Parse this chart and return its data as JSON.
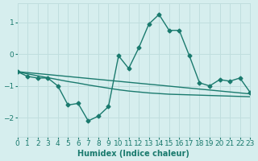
{
  "xlabel": "Humidex (Indice chaleur)",
  "ylabel": "",
  "xlim": [
    0,
    23
  ],
  "ylim": [
    -2.6,
    1.6
  ],
  "background_color": "#d6eeee",
  "grid_color": "#c0dede",
  "line_color": "#1a7a6e",
  "line1_x": [
    0,
    1,
    2,
    3,
    4,
    5,
    6,
    7,
    8,
    9,
    10,
    11,
    12,
    13,
    14,
    15,
    16,
    17,
    18,
    19,
    20,
    21,
    22,
    23
  ],
  "line1_y": [
    -0.55,
    -0.7,
    -0.75,
    -0.75,
    -1.0,
    -1.6,
    -1.55,
    -2.1,
    -1.95,
    -1.65,
    -0.05,
    -0.45,
    0.2,
    0.95,
    1.25,
    0.75,
    0.75,
    -0.05,
    -0.9,
    -1.0,
    -0.8,
    -0.85,
    -0.75,
    -1.2
  ],
  "line2_x": [
    0,
    1,
    2,
    3,
    4,
    5,
    6,
    7,
    8,
    9,
    10,
    11,
    12,
    13,
    14,
    15,
    16,
    17,
    18,
    19,
    20,
    21,
    22,
    23
  ],
  "line2_y": [
    -0.55,
    -0.62,
    -0.68,
    -0.74,
    -0.8,
    -0.86,
    -0.91,
    -0.97,
    -1.02,
    -1.07,
    -1.12,
    -1.16,
    -1.19,
    -1.22,
    -1.24,
    -1.26,
    -1.27,
    -1.28,
    -1.29,
    -1.3,
    -1.31,
    -1.32,
    -1.33,
    -1.34
  ],
  "line3_x": [
    0,
    23
  ],
  "line3_y": [
    -0.55,
    -1.25
  ],
  "yticks": [
    -2,
    -1,
    0,
    1
  ],
  "xticks": [
    0,
    1,
    2,
    3,
    4,
    5,
    6,
    7,
    8,
    9,
    10,
    11,
    12,
    13,
    14,
    15,
    16,
    17,
    18,
    19,
    20,
    21,
    22,
    23
  ]
}
